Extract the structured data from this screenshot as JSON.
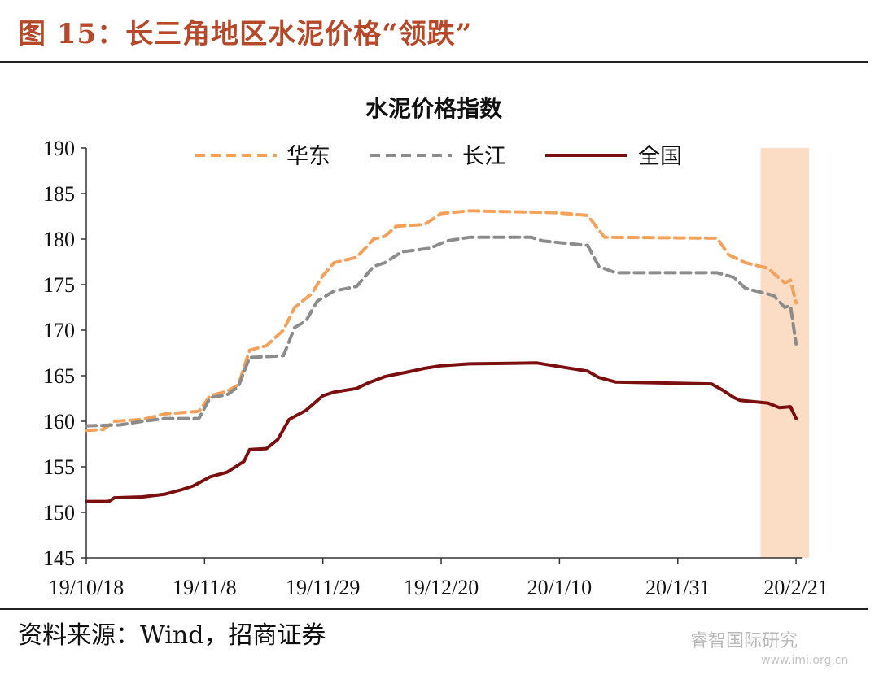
{
  "figure": {
    "title": "图 15：长三角地区水泥价格“领跌”",
    "source": "资料来源：Wind，招商证券",
    "watermark": "睿智国际研究",
    "watermark_url": "www.imi.org.cn"
  },
  "colors": {
    "title": "#b5492a",
    "huadong": "#f4a25b",
    "changjiang": "#8c8c8c",
    "quanguo": "#7b0f0f",
    "highlight": "#fbdcc5"
  },
  "chart_data": {
    "type": "line",
    "title": "水泥价格指数",
    "xlabel": "",
    "ylabel": "",
    "ylim": [
      145,
      190
    ],
    "yticks": [
      145,
      150,
      155,
      160,
      165,
      170,
      175,
      180,
      185,
      190
    ],
    "xlim": [
      "2019-10-18",
      "2020-02-22"
    ],
    "xticks": [
      "19/10/18",
      "19/11/8",
      "19/11/29",
      "19/12/20",
      "20/1/10",
      "20/1/31",
      "20/2/21"
    ],
    "xtick_dates": [
      "2019-10-18",
      "2019-11-08",
      "2019-11-29",
      "2019-12-20",
      "2020-01-10",
      "2020-01-31",
      "2020-02-21"
    ],
    "highlight_range": [
      "2020-02-15",
      "2020-02-23"
    ],
    "legend": "top",
    "grid": false,
    "series": [
      {
        "name": "华东",
        "style": "dashed",
        "points": [
          [
            "2019-10-18",
            159.0
          ],
          [
            "2019-10-21",
            159.1
          ],
          [
            "2019-10-23",
            160.0
          ],
          [
            "2019-10-28",
            160.2
          ],
          [
            "2019-11-01",
            160.8
          ],
          [
            "2019-11-07",
            161.1
          ],
          [
            "2019-11-09",
            162.8
          ],
          [
            "2019-11-12",
            163.3
          ],
          [
            "2019-11-14",
            164.0
          ],
          [
            "2019-11-16",
            167.8
          ],
          [
            "2019-11-19",
            168.3
          ],
          [
            "2019-11-22",
            170.0
          ],
          [
            "2019-11-24",
            172.5
          ],
          [
            "2019-11-27",
            174.0
          ],
          [
            "2019-11-29",
            176.0
          ],
          [
            "2019-12-01",
            177.4
          ],
          [
            "2019-12-05",
            178.0
          ],
          [
            "2019-12-08",
            180.0
          ],
          [
            "2019-12-10",
            180.3
          ],
          [
            "2019-12-12",
            181.4
          ],
          [
            "2019-12-17",
            181.6
          ],
          [
            "2019-12-20",
            182.8
          ],
          [
            "2019-12-25",
            183.1
          ],
          [
            "2020-01-09",
            182.9
          ],
          [
            "2020-01-15",
            182.6
          ],
          [
            "2020-01-18",
            180.2
          ],
          [
            "2020-02-07",
            180.1
          ],
          [
            "2020-02-09",
            178.3
          ],
          [
            "2020-02-12",
            177.4
          ],
          [
            "2020-02-16",
            176.8
          ],
          [
            "2020-02-19",
            175.2
          ],
          [
            "2020-02-20",
            175.5
          ],
          [
            "2020-02-21",
            173.0
          ]
        ]
      },
      {
        "name": "长江",
        "style": "dashed",
        "points": [
          [
            "2019-10-18",
            159.5
          ],
          [
            "2019-10-24",
            159.6
          ],
          [
            "2019-10-28",
            160.0
          ],
          [
            "2019-11-01",
            160.3
          ],
          [
            "2019-11-07",
            160.3
          ],
          [
            "2019-11-09",
            162.6
          ],
          [
            "2019-11-12",
            162.9
          ],
          [
            "2019-11-14",
            163.8
          ],
          [
            "2019-11-16",
            167.0
          ],
          [
            "2019-11-22",
            167.2
          ],
          [
            "2019-11-24",
            170.3
          ],
          [
            "2019-11-26",
            171.0
          ],
          [
            "2019-11-28",
            173.2
          ],
          [
            "2019-12-01",
            174.3
          ],
          [
            "2019-12-05",
            174.8
          ],
          [
            "2019-12-08",
            177.0
          ],
          [
            "2019-12-10",
            177.4
          ],
          [
            "2019-12-13",
            178.6
          ],
          [
            "2019-12-18",
            179.0
          ],
          [
            "2019-12-21",
            179.8
          ],
          [
            "2019-12-25",
            180.2
          ],
          [
            "2020-01-05",
            180.2
          ],
          [
            "2020-01-07",
            179.8
          ],
          [
            "2020-01-15",
            179.3
          ],
          [
            "2020-01-17",
            177.0
          ],
          [
            "2020-01-20",
            176.3
          ],
          [
            "2020-02-07",
            176.3
          ],
          [
            "2020-02-10",
            175.8
          ],
          [
            "2020-02-12",
            174.6
          ],
          [
            "2020-02-17",
            173.8
          ],
          [
            "2020-02-19",
            172.5
          ],
          [
            "2020-02-20",
            172.7
          ],
          [
            "2020-02-21",
            168.5
          ]
        ]
      },
      {
        "name": "全国",
        "style": "solid",
        "points": [
          [
            "2019-10-18",
            151.2
          ],
          [
            "2019-10-22",
            151.2
          ],
          [
            "2019-10-23",
            151.6
          ],
          [
            "2019-10-28",
            151.7
          ],
          [
            "2019-11-01",
            152.0
          ],
          [
            "2019-11-04",
            152.5
          ],
          [
            "2019-11-06",
            152.9
          ],
          [
            "2019-11-09",
            153.9
          ],
          [
            "2019-11-12",
            154.4
          ],
          [
            "2019-11-15",
            155.6
          ],
          [
            "2019-11-16",
            156.9
          ],
          [
            "2019-11-19",
            157.0
          ],
          [
            "2019-11-21",
            158.0
          ],
          [
            "2019-11-23",
            160.2
          ],
          [
            "2019-11-26",
            161.2
          ],
          [
            "2019-11-29",
            162.8
          ],
          [
            "2019-12-01",
            163.2
          ],
          [
            "2019-12-05",
            163.6
          ],
          [
            "2019-12-07",
            164.2
          ],
          [
            "2019-12-10",
            164.9
          ],
          [
            "2019-12-14",
            165.4
          ],
          [
            "2019-12-17",
            165.8
          ],
          [
            "2019-12-20",
            166.1
          ],
          [
            "2019-12-25",
            166.3
          ],
          [
            "2020-01-06",
            166.4
          ],
          [
            "2020-01-10",
            166.0
          ],
          [
            "2020-01-15",
            165.5
          ],
          [
            "2020-01-17",
            164.8
          ],
          [
            "2020-01-20",
            164.3
          ],
          [
            "2020-02-06",
            164.1
          ],
          [
            "2020-02-08",
            163.4
          ],
          [
            "2020-02-10",
            162.6
          ],
          [
            "2020-02-11",
            162.3
          ],
          [
            "2020-02-16",
            162.0
          ],
          [
            "2020-02-18",
            161.5
          ],
          [
            "2020-02-20",
            161.6
          ],
          [
            "2020-02-21",
            160.3
          ]
        ]
      }
    ]
  }
}
